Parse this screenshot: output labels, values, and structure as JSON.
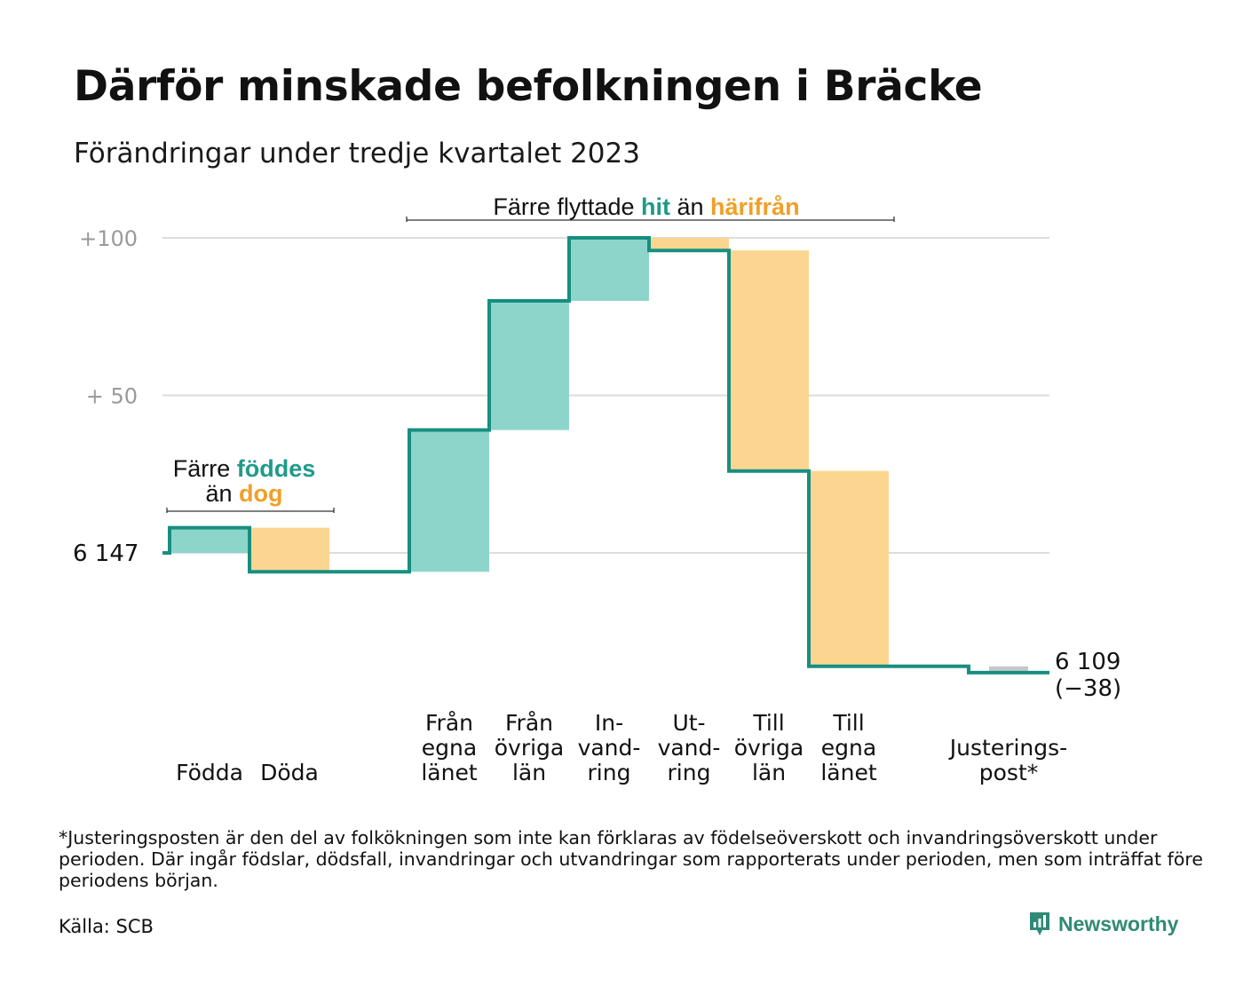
{
  "header": {
    "title": "Därför minskade befolkningen i Bräcke",
    "subtitle": "Förändringar under tredje kvartalet 2023"
  },
  "chart_data": {
    "type": "waterfall",
    "title": "Därför minskade befolkningen i Bräcke",
    "subtitle": "Förändringar under tredje kvartalet 2023",
    "start_value": 6147,
    "start_label": "6  147",
    "end_value": 6109,
    "end_label_lines": [
      "6 109",
      "(−38)"
    ],
    "y_ticks": [
      {
        "value": 100,
        "label": "+100"
      },
      {
        "value": 50,
        "label": "+  50"
      }
    ],
    "y_range": [
      -50,
      100
    ],
    "steps": [
      {
        "label_lines": [
          "Födda"
        ],
        "value": 8,
        "kind": "in"
      },
      {
        "label_lines": [
          "Döda"
        ],
        "value": -14,
        "kind": "out"
      },
      {
        "label_lines": [],
        "value": 0,
        "kind": "gap"
      },
      {
        "label_lines": [
          "Från",
          "egna",
          "länet"
        ],
        "value": 45,
        "kind": "in"
      },
      {
        "label_lines": [
          "Från",
          "övriga",
          "län"
        ],
        "value": 41,
        "kind": "in"
      },
      {
        "label_lines": [
          "In-",
          "vand-",
          "ring"
        ],
        "value": 20,
        "kind": "in"
      },
      {
        "label_lines": [
          "Ut-",
          "vand-",
          "ring"
        ],
        "value": -4,
        "kind": "out"
      },
      {
        "label_lines": [
          "Till",
          "övriga",
          "län"
        ],
        "value": -70,
        "kind": "out"
      },
      {
        "label_lines": [
          "Till",
          "egna",
          "länet"
        ],
        "value": -62,
        "kind": "out"
      },
      {
        "label_lines": [],
        "value": 0,
        "kind": "gap"
      },
      {
        "label_lines": [
          "Justerings-",
          "post*"
        ],
        "value": -2,
        "kind": "adjust"
      }
    ],
    "annotations": [
      {
        "id": "births",
        "lines": [
          [
            {
              "text": "Färre ",
              "kind": "plain"
            },
            {
              "text": "föddes",
              "kind": "in"
            }
          ],
          [
            {
              "text": "än ",
              "kind": "plain"
            },
            {
              "text": "dog",
              "kind": "out"
            }
          ]
        ]
      },
      {
        "id": "moves",
        "lines": [
          [
            {
              "text": "Färre flyttade ",
              "kind": "plain"
            },
            {
              "text": "hit",
              "kind": "in"
            },
            {
              "text": " än ",
              "kind": "plain"
            },
            {
              "text": "härifrån",
              "kind": "out"
            }
          ]
        ]
      }
    ],
    "colors": {
      "in_fill": "#8dd5cb",
      "out_fill": "#fcd690",
      "adjust_fill": "#c8c8c8",
      "line": "#178f80",
      "in_text": "#1f9a8a",
      "out_text": "#f0a027",
      "grid": "#dddddd",
      "tick_text": "#9a9a9a"
    },
    "grid": true
  },
  "footnote": "*Justeringsposten är den del av folkökningen som inte kan förklaras av födelseöverskott och invandringsöverskott under perioden. Där ingår födslar, dödsfall, invandringar och utvandringar som rapporterats under perioden, men som inträffat före periodens början.",
  "source": "Källa: SCB",
  "brand": {
    "name": "Newsworthy",
    "icon": "newsworthy-logo-icon"
  }
}
